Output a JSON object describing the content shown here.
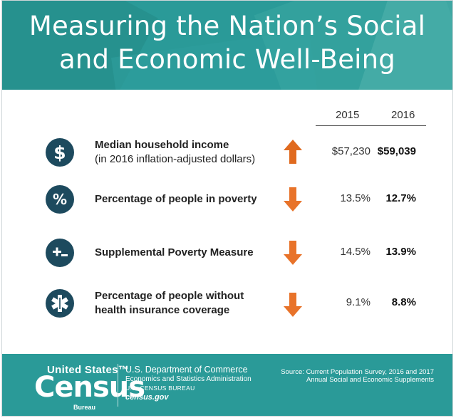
{
  "title_line1": "Measuring the Nation’s Social",
  "title_line2": "and Economic Well-Being",
  "years": [
    "2015",
    "2016"
  ],
  "rows": [
    {
      "icon": "dollar-icon",
      "icon_text": "$",
      "label_line1": "Median household income",
      "label_line2": "(in 2016 inflation-adjusted dollars)",
      "direction": "up",
      "v2015": "$57,230",
      "v2016": "$59,039"
    },
    {
      "icon": "percent-icon",
      "icon_text": "%",
      "label_line1": "Percentage of people in poverty",
      "label_line2": "",
      "direction": "down",
      "v2015": "13.5%",
      "v2016": "12.7%"
    },
    {
      "icon": "plus-minus-icon",
      "icon_text": "+-",
      "label_line1": "Supplemental Poverty Measure",
      "label_line2": "",
      "direction": "down",
      "v2015": "14.5%",
      "v2016": "13.9%"
    },
    {
      "icon": "medical-star-icon",
      "icon_text": "",
      "label_line1": "Percentage of people without",
      "label_line2": "health insurance coverage",
      "direction": "down",
      "v2015": "9.1%",
      "v2016": "8.8%"
    }
  ],
  "colors": {
    "teal": "#2a9a98",
    "navy": "#1d4a5e",
    "arrow_orange": "#e8732a",
    "arrow_up": "#e06a1f"
  },
  "footer": {
    "logo_top": "United States™",
    "logo_main": "Census",
    "logo_bureau": "Bureau",
    "dept_line1": "U.S. Department of Commerce",
    "dept_line2": "Economics and Statistics Administration",
    "dept_line3": "U.S. CENSUS BUREAU",
    "dept_line4": "census.gov",
    "source_line1": "Source: Current Population Survey, 2016 and 2017",
    "source_line2": "Annual Social and Economic Supplements"
  }
}
